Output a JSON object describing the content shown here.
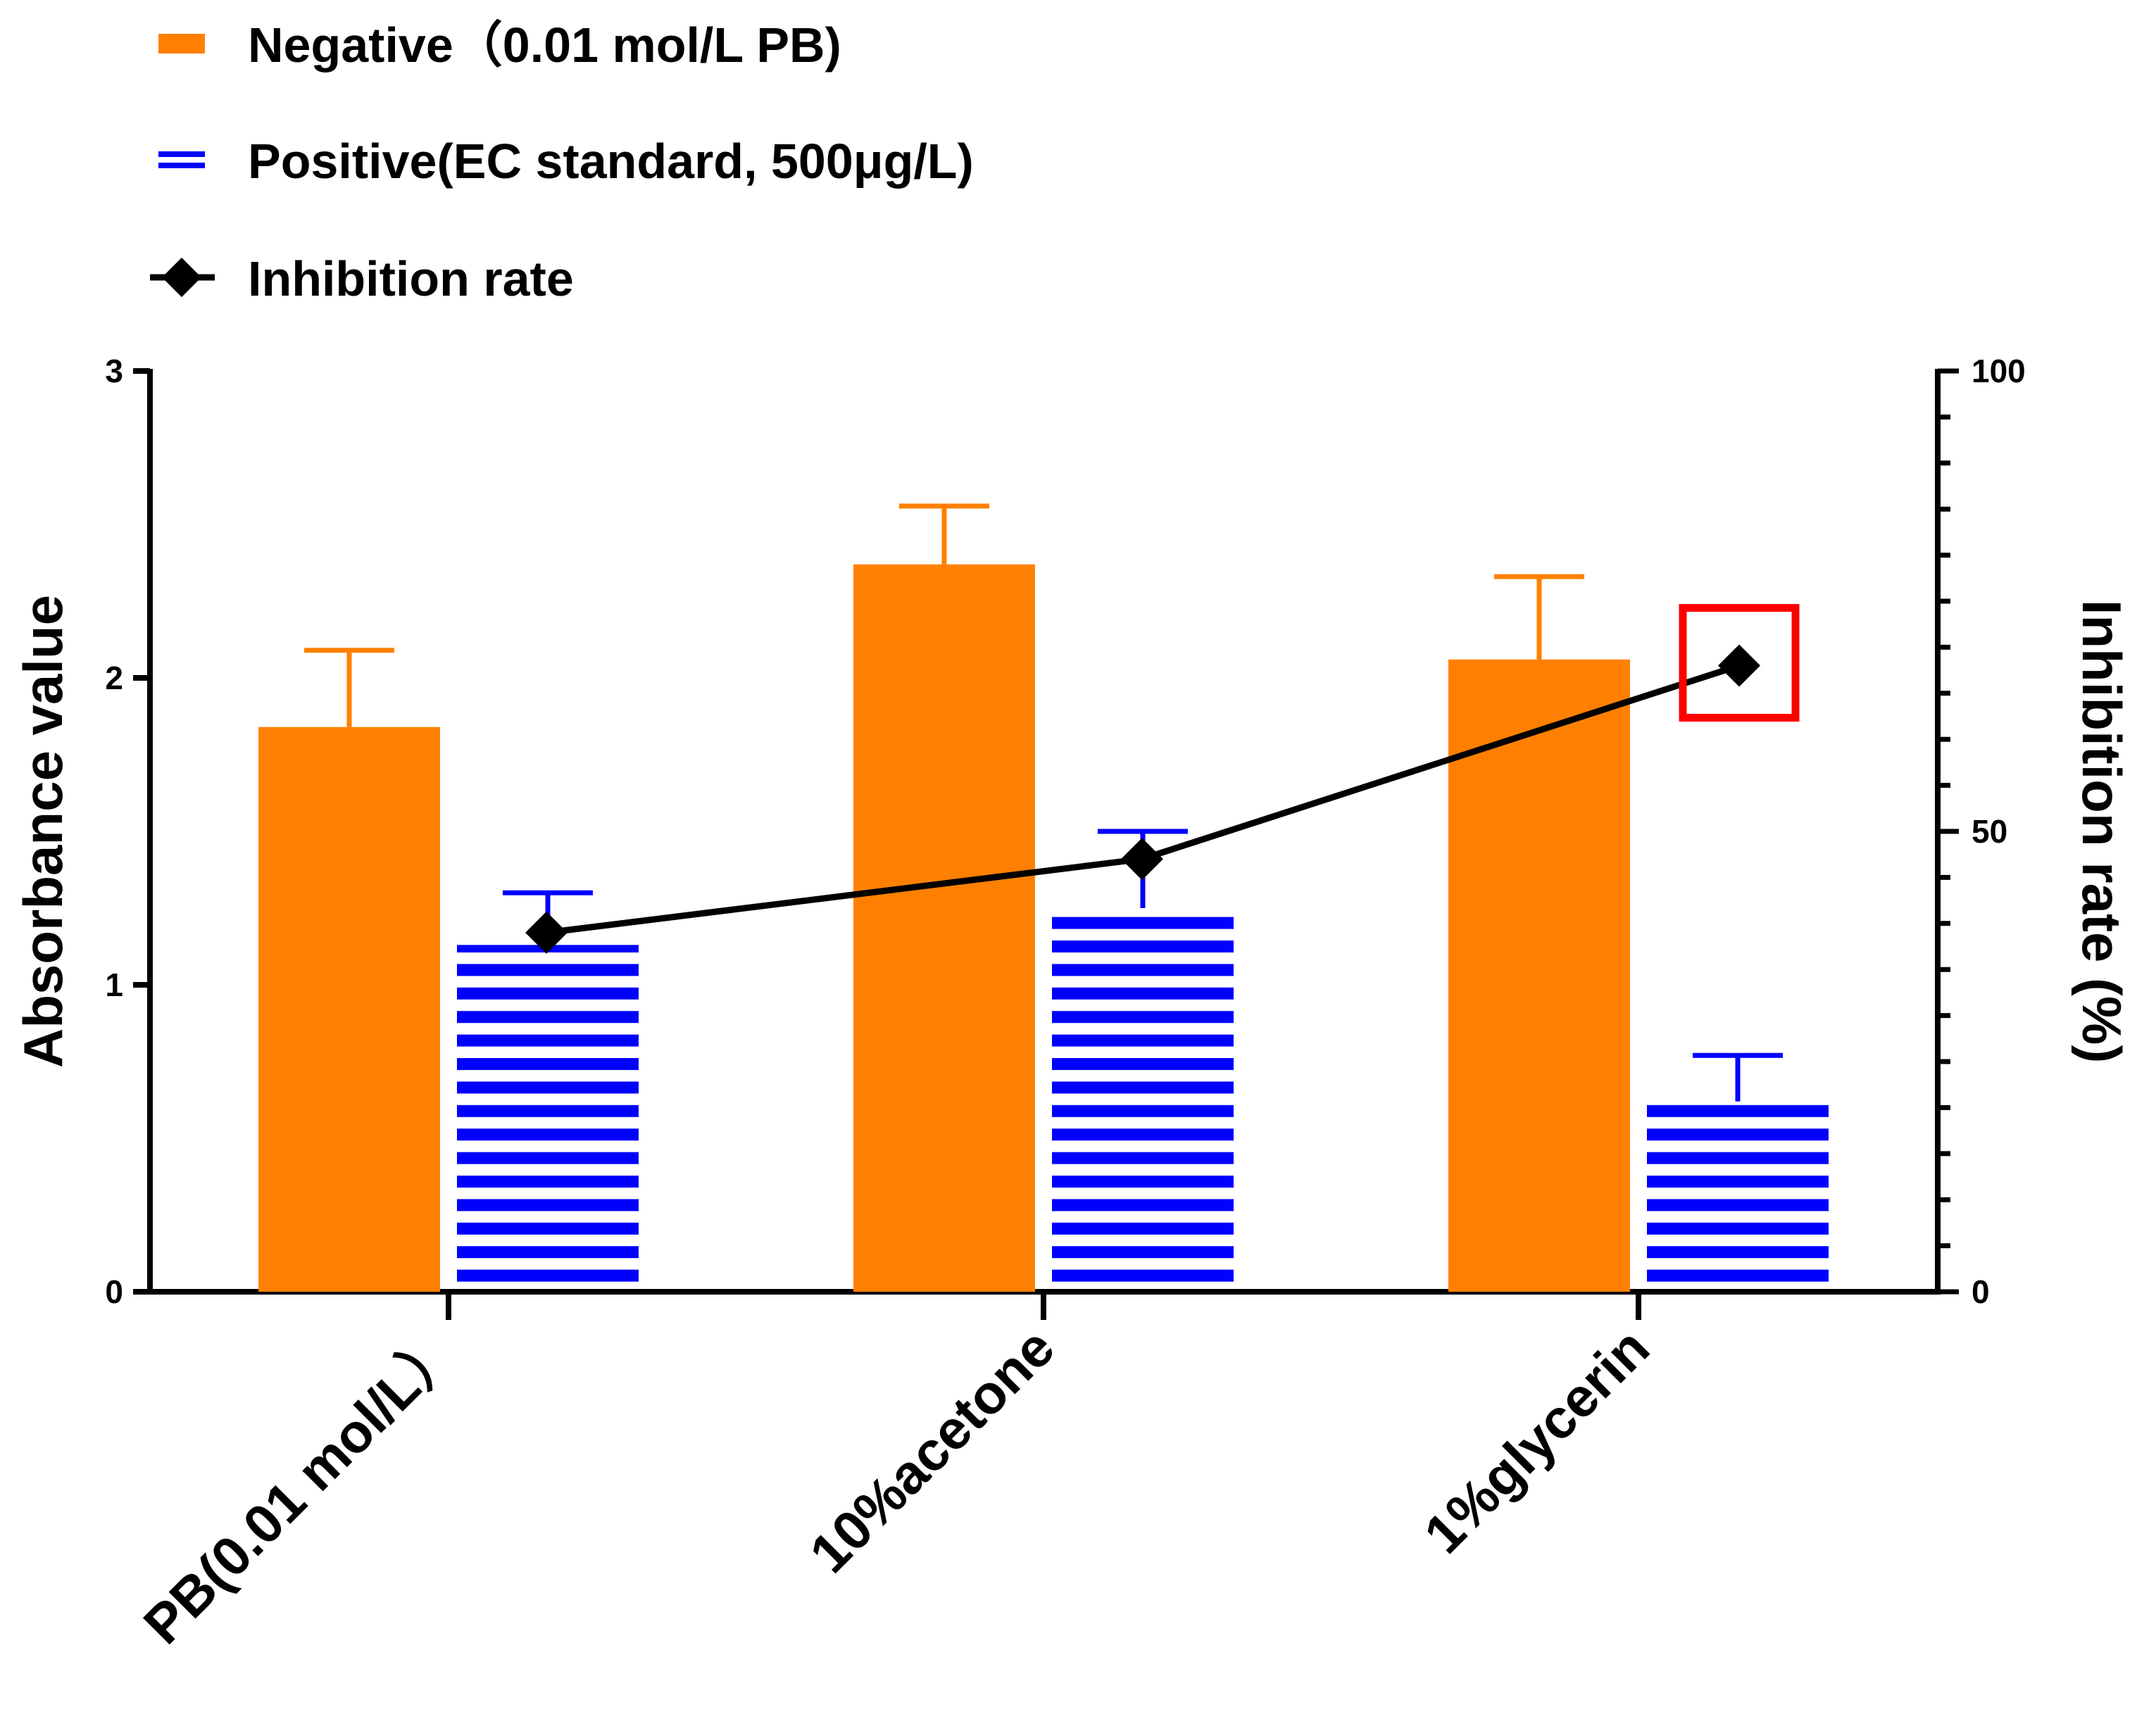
{
  "chart_data": {
    "type": "bar",
    "categories": [
      "PB(0.01 mol/L）",
      "10%acetone",
      "1%glycerin"
    ],
    "series": [
      {
        "name": "Negative（0.01 mol/L PB)",
        "kind": "bar",
        "axis": "left",
        "color": "#ff8000",
        "pattern": "solid",
        "values": [
          1.84,
          2.37,
          2.06
        ],
        "errors": [
          0.25,
          0.19,
          0.27
        ]
      },
      {
        "name": "Positive(EC standard, 500μg/L)",
        "kind": "bar",
        "axis": "left",
        "color": "#0000ff",
        "pattern": "horizontal-stripes",
        "values": [
          1.13,
          1.25,
          0.62
        ],
        "errors": [
          0.17,
          0.25,
          0.15
        ]
      },
      {
        "name": "Inhibition rate",
        "kind": "line",
        "axis": "right",
        "color": "#000000",
        "marker": "diamond",
        "values": [
          39,
          47,
          68
        ]
      }
    ],
    "y_left": {
      "label": "Absorbance value",
      "ylim": [
        0,
        3
      ],
      "ticks": [
        "0",
        "1",
        "2",
        "3"
      ]
    },
    "y_right": {
      "label": "Inhibition rate (%)",
      "ylim": [
        0,
        100
      ],
      "ticks": [
        "0",
        "50",
        "100"
      ]
    },
    "legend_position": "top-left",
    "highlight": {
      "series": "Inhibition rate",
      "category_index": 2,
      "color": "#ff0000"
    },
    "grid": false
  }
}
